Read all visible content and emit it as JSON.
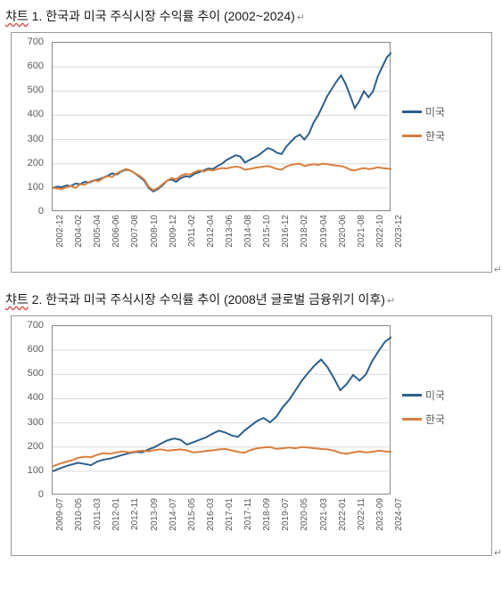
{
  "charts": [
    {
      "title_parts": {
        "underlined": "챠트",
        "rest": " 1. 한국과 미국 주식시장 수익률 추이 (2002~2024)",
        "tail": "↵"
      },
      "type": "line",
      "background_color": "#ffffff",
      "grid_color": "#d9d9d9",
      "border_color": "#888888",
      "ylim": [
        0,
        700
      ],
      "ytick_step": 100,
      "yticks": [
        0,
        100,
        200,
        300,
        400,
        500,
        600,
        700
      ],
      "xlabels": [
        "2002-12",
        "2004-02",
        "2005-04",
        "2006-06",
        "2007-08",
        "2008-10",
        "2009-12",
        "2011-02",
        "2012-04",
        "2013-06",
        "2014-08",
        "2015-10",
        "2016-12",
        "2018-02",
        "2019-04",
        "2020-06",
        "2021-08",
        "2022-10",
        "2023-12"
      ],
      "legend": [
        {
          "label": "미국",
          "color": "#2e5f8a"
        },
        {
          "label": "한국",
          "color": "#d97f3f"
        }
      ],
      "series": [
        {
          "name": "미국",
          "color": "#2e5f8a",
          "values": [
            100,
            105,
            103,
            110,
            108,
            118,
            115,
            125,
            122,
            130,
            135,
            142,
            150,
            160,
            155,
            168,
            175,
            172,
            160,
            145,
            130,
            100,
            85,
            95,
            110,
            130,
            135,
            125,
            140,
            148,
            145,
            158,
            165,
            172,
            180,
            178,
            190,
            200,
            215,
            225,
            235,
            230,
            205,
            215,
            225,
            235,
            250,
            265,
            258,
            245,
            240,
            270,
            290,
            310,
            320,
            300,
            325,
            370,
            400,
            440,
            480,
            510,
            540,
            565,
            530,
            480,
            430,
            460,
            500,
            475,
            500,
            560,
            600,
            640,
            660
          ]
        },
        {
          "name": "한국",
          "color": "#d97f3f",
          "values": [
            100,
            98,
            95,
            102,
            108,
            100,
            115,
            112,
            125,
            132,
            128,
            140,
            148,
            145,
            160,
            170,
            178,
            172,
            160,
            150,
            135,
            105,
            90,
            100,
            115,
            130,
            140,
            135,
            150,
            158,
            155,
            165,
            172,
            168,
            175,
            172,
            178,
            182,
            180,
            185,
            188,
            185,
            175,
            178,
            182,
            185,
            188,
            190,
            185,
            178,
            175,
            188,
            195,
            198,
            200,
            190,
            195,
            198,
            195,
            200,
            198,
            195,
            192,
            190,
            185,
            175,
            172,
            178,
            182,
            178,
            180,
            185,
            182,
            180,
            178
          ]
        }
      ],
      "line_width": 2,
      "x_label_fontsize": 10,
      "y_label_fontsize": 11
    },
    {
      "title_parts": {
        "underlined": "챠트",
        "rest": " 2. 한국과 미국 주식시장 수익률 추이 (2008년 글로벌 금융위기 이후)",
        "tail": "↵"
      },
      "type": "line",
      "background_color": "#ffffff",
      "grid_color": "#d9d9d9",
      "border_color": "#888888",
      "ylim": [
        0,
        700
      ],
      "ytick_step": 100,
      "yticks": [
        0,
        100,
        200,
        300,
        400,
        500,
        600,
        700
      ],
      "xlabels": [
        "2009-07",
        "2010-05",
        "2011-03",
        "2012-01",
        "2012-11",
        "2013-09",
        "2014-07",
        "2015-05",
        "2016-03",
        "2017-01",
        "2017-11",
        "2018-09",
        "2019-07",
        "2020-05",
        "2021-03",
        "2022-01",
        "2022-11",
        "2023-09",
        "2024-07"
      ],
      "legend": [
        {
          "label": "미국",
          "color": "#2e5f8a"
        },
        {
          "label": "한국",
          "color": "#d97f3f"
        }
      ],
      "series": [
        {
          "name": "미국",
          "color": "#2e5f8a",
          "values": [
            100,
            110,
            120,
            128,
            135,
            130,
            125,
            140,
            148,
            152,
            160,
            168,
            175,
            180,
            178,
            190,
            200,
            215,
            228,
            235,
            230,
            210,
            220,
            230,
            240,
            255,
            268,
            260,
            248,
            242,
            268,
            288,
            308,
            320,
            302,
            325,
            365,
            395,
            435,
            475,
            508,
            538,
            562,
            530,
            485,
            435,
            460,
            498,
            475,
            500,
            556,
            598,
            635,
            655
          ]
        },
        {
          "name": "한국",
          "color": "#d97f3f",
          "values": [
            120,
            130,
            138,
            145,
            155,
            160,
            158,
            168,
            175,
            172,
            178,
            182,
            178,
            182,
            185,
            182,
            188,
            190,
            185,
            188,
            190,
            186,
            178,
            180,
            184,
            186,
            190,
            192,
            186,
            180,
            176,
            188,
            195,
            198,
            200,
            192,
            195,
            198,
            195,
            200,
            198,
            195,
            192,
            190,
            185,
            176,
            172,
            178,
            182,
            178,
            180,
            185,
            182,
            180
          ]
        }
      ],
      "line_width": 2,
      "x_label_fontsize": 10,
      "y_label_fontsize": 11
    }
  ]
}
